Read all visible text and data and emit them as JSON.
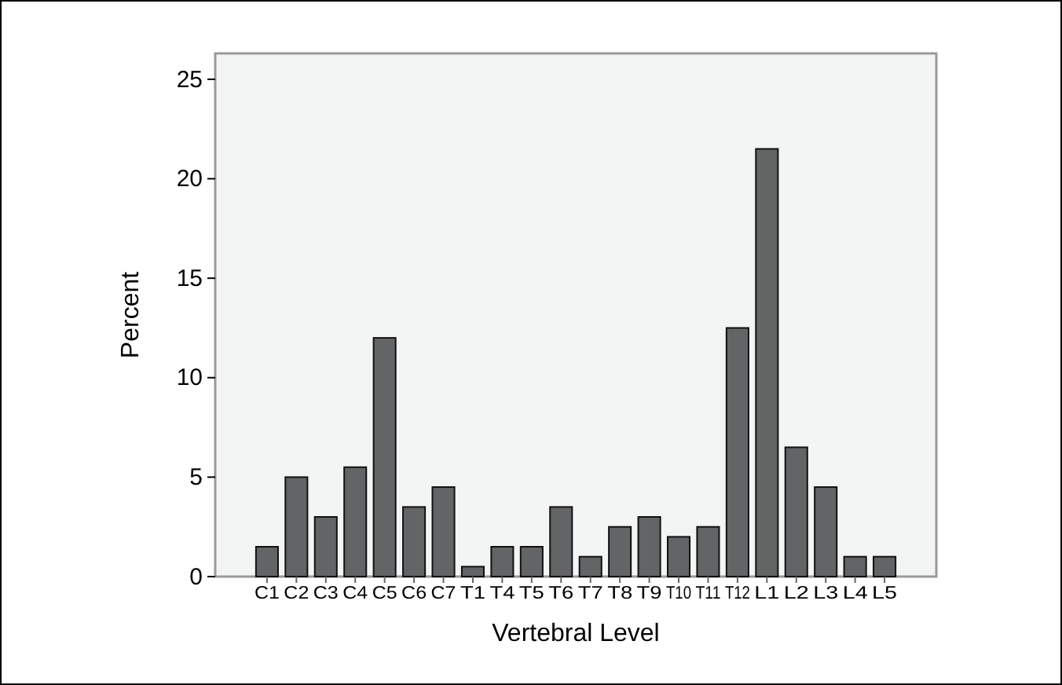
{
  "chart_data": {
    "type": "bar",
    "xlabel": "Vertebral Level",
    "ylabel": "Percent",
    "categories": [
      "C1",
      "C2",
      "C3",
      "C4",
      "C5",
      "C6",
      "C7",
      "T1",
      "T4",
      "T5",
      "T6",
      "T7",
      "T8",
      "T9",
      "T10",
      "T11",
      "T12",
      "L1",
      "L2",
      "L3",
      "L4",
      "L5"
    ],
    "values": [
      1.5,
      5,
      3,
      5.5,
      12,
      3.5,
      4.5,
      0.5,
      1.5,
      1.5,
      3.5,
      1,
      2.5,
      3,
      2,
      2.5,
      12.5,
      21.5,
      6.5,
      4.5,
      1,
      1
    ],
    "color": "#636466",
    "ylim": [
      0,
      26.3
    ],
    "yticks": [
      0,
      5,
      10,
      15,
      20,
      25
    ],
    "grid": false
  }
}
